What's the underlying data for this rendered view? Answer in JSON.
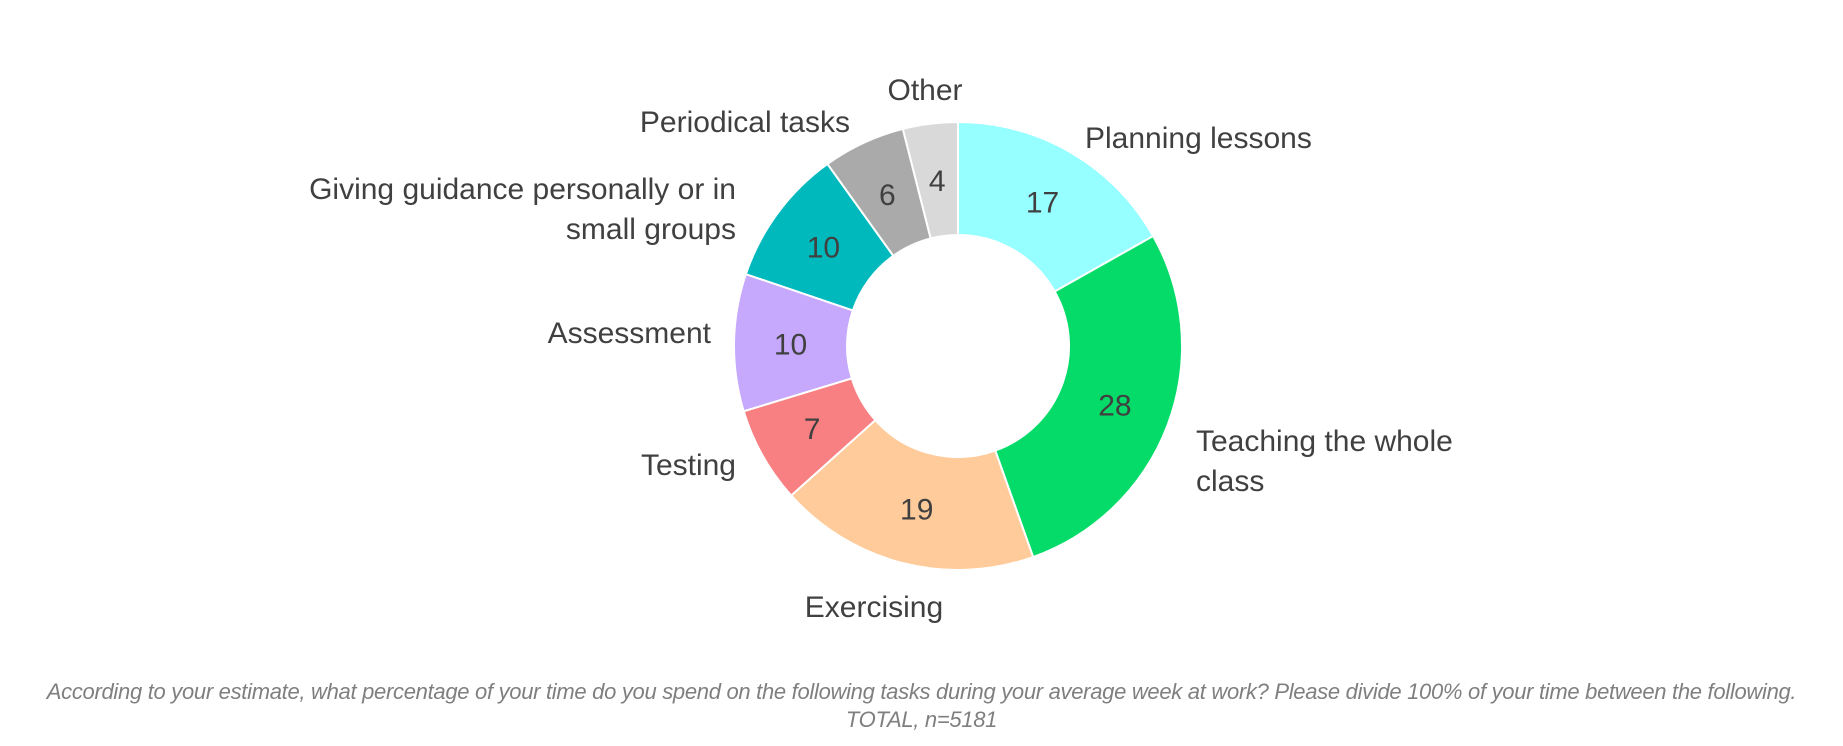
{
  "chart_data": {
    "type": "pie",
    "donut": true,
    "unit": "%",
    "categories": [
      "Planning lessons",
      "Teaching the whole class",
      "Exercising",
      "Testing",
      "Assessment",
      "Giving guidance personally or in small groups",
      "Periodical tasks",
      "Other"
    ],
    "values": [
      17,
      28,
      19,
      7,
      10,
      10,
      6,
      4
    ],
    "colors": [
      "#96ffff",
      "#05db69",
      "#ffcb9a",
      "#f87f82",
      "#c6a8fc",
      "#00b9bc",
      "#aaaaaa",
      "#d9d9d9"
    ],
    "category_label_lines": [
      [
        "Planning lessons"
      ],
      [
        "Teaching the whole",
        "class"
      ],
      [
        "Exercising"
      ],
      [
        "Testing"
      ],
      [
        "Assessment"
      ],
      [
        "Giving guidance personally or in",
        "small groups"
      ],
      [
        "Periodical tasks"
      ],
      [
        "Other"
      ]
    ],
    "legend": "none",
    "data_labels": true
  },
  "footnote": {
    "line1": "According to your estimate, what percentage of your time do you spend on the following tasks during your average week at work? Please divide 100% of your time between the following.",
    "line2": "TOTAL, n=5181"
  }
}
